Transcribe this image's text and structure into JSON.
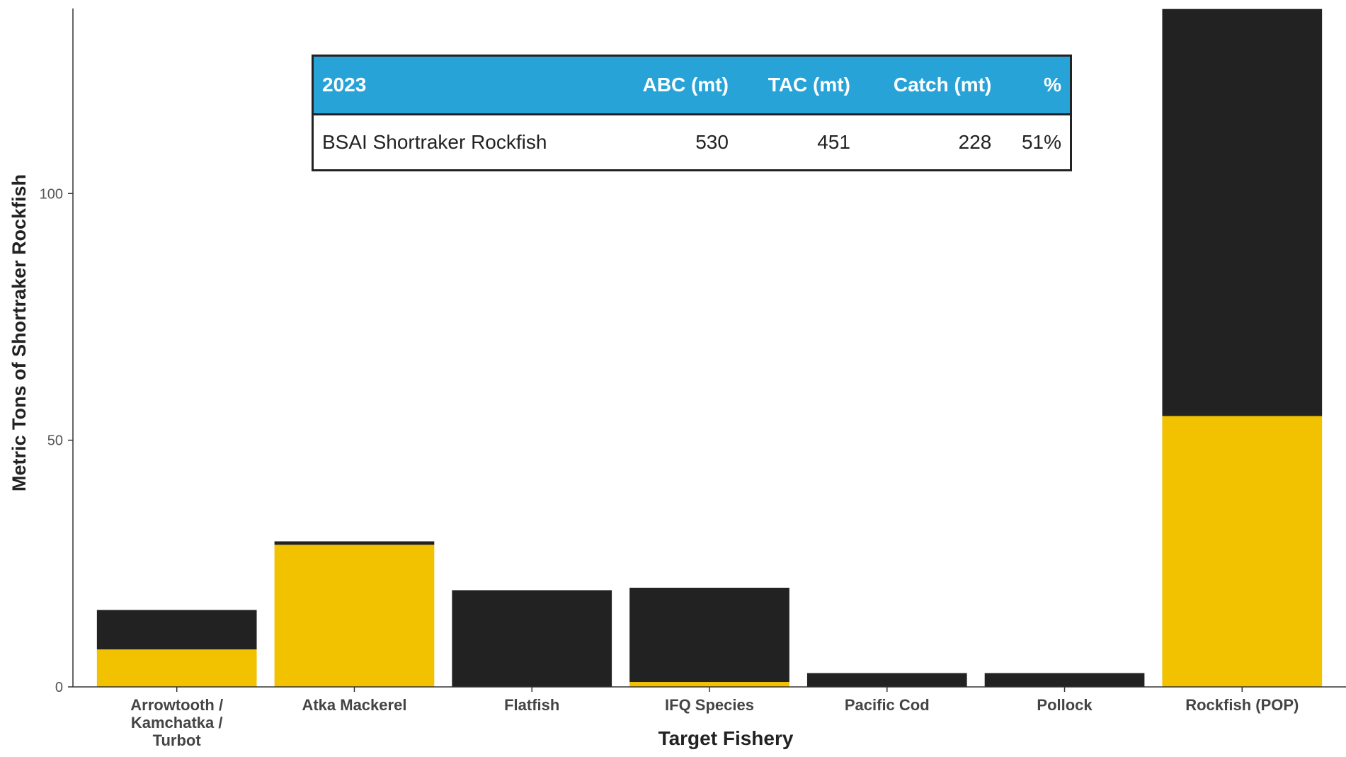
{
  "chart_data": {
    "type": "stacked-bar",
    "ylabel": "Metric Tons of Shortraker Rockfish",
    "xlabel": "Target Fishery",
    "categories": [
      "Arrowtooth / Kamchatka / Turbot",
      "Atka Mackerel",
      "Flatfish",
      "IFQ Species",
      "Pacific Cod",
      "Pollock",
      "Rockfish (POP)"
    ],
    "series": [
      {
        "color": "#f2c200",
        "values": [
          7.6,
          28.8,
          0,
          1.0,
          0,
          0,
          54.9
        ]
      },
      {
        "color": "#222222",
        "values": [
          8.0,
          0.7,
          19.6,
          19.1,
          2.8,
          2.8,
          82.5
        ]
      }
    ],
    "ylim": [
      0,
      137.5
    ],
    "yticks": [
      0,
      50,
      100
    ]
  },
  "table": {
    "header": [
      "2023",
      "ABC (mt)",
      "TAC (mt)",
      "Catch (mt)",
      "%"
    ],
    "rows": [
      [
        "BSAI Shortraker Rockfish",
        "530",
        "451",
        "228",
        "51%"
      ]
    ]
  }
}
